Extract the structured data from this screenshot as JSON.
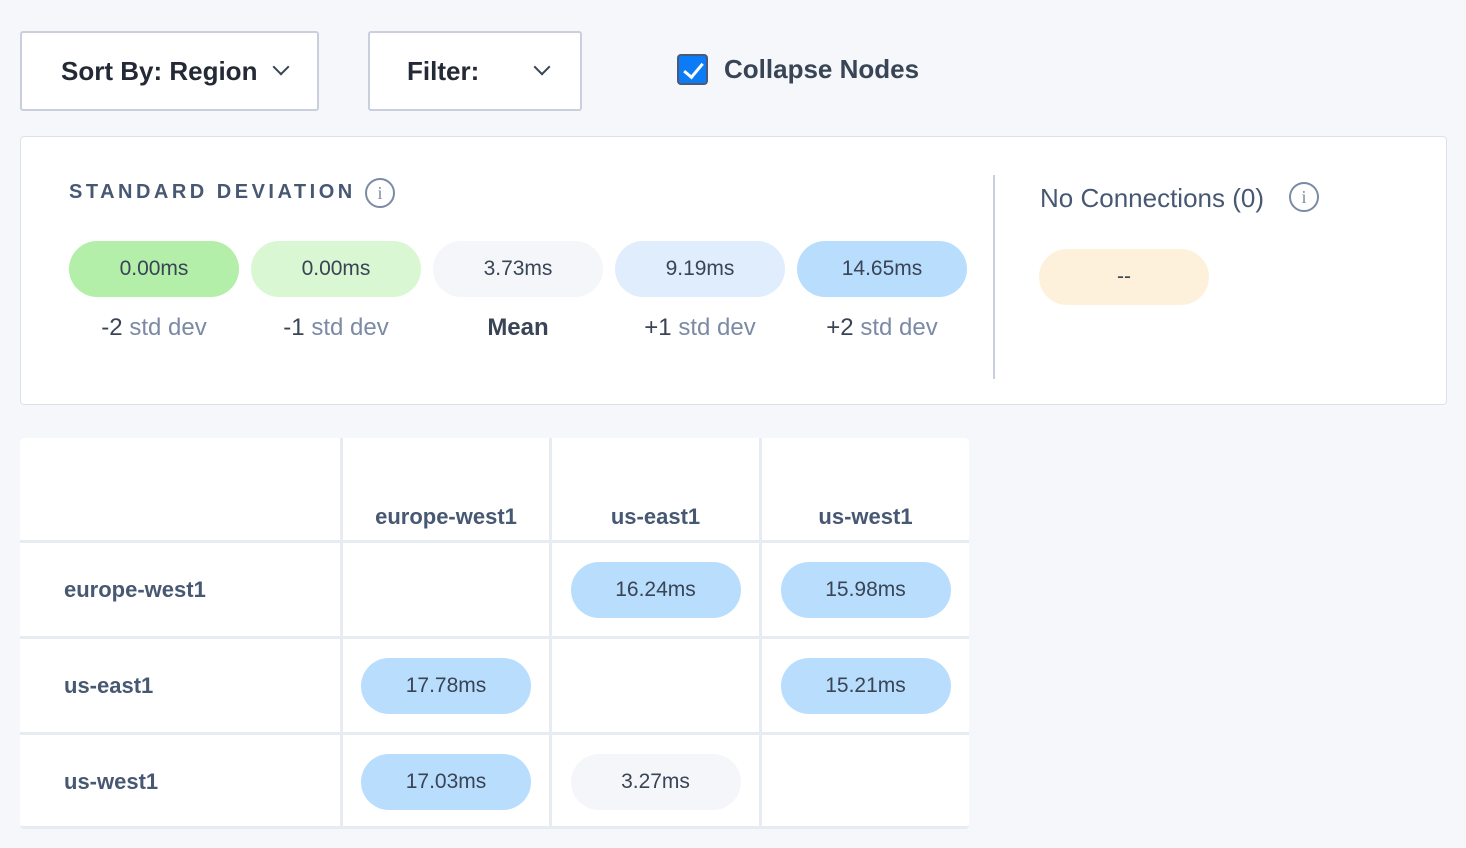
{
  "toolbar": {
    "sort_label": "Sort By: Region",
    "filter_label": "Filter:",
    "collapse_label": "Collapse Nodes",
    "collapse_checked": true
  },
  "std_panel": {
    "title": "STANDARD DEVIATION",
    "pills": [
      {
        "value": "0.00ms",
        "prefix": "-2",
        "suffix": "std dev",
        "color": "#b3efa9"
      },
      {
        "value": "0.00ms",
        "prefix": "-1",
        "suffix": "std dev",
        "color": "#d9f7d3"
      },
      {
        "value": "3.73ms",
        "prefix": "Mean",
        "suffix": "",
        "color": "#f4f6fa"
      },
      {
        "value": "9.19ms",
        "prefix": "+1",
        "suffix": "std dev",
        "color": "#dfedfc"
      },
      {
        "value": "14.65ms",
        "prefix": "+2",
        "suffix": "std dev",
        "color": "#b9ddfd"
      }
    ],
    "no_connections_label": "No Connections (0)",
    "no_connections_value": "--",
    "no_connections_color": "#fdf1dc"
  },
  "matrix": {
    "columns": [
      "europe-west1",
      "us-east1",
      "us-west1"
    ],
    "rows": [
      {
        "label": "europe-west1",
        "cells": [
          null,
          {
            "v": "16.24ms",
            "c": "#b9ddfd"
          },
          {
            "v": "15.98ms",
            "c": "#b9ddfd"
          }
        ]
      },
      {
        "label": "us-east1",
        "cells": [
          {
            "v": "17.78ms",
            "c": "#b9ddfd"
          },
          null,
          {
            "v": "15.21ms",
            "c": "#b9ddfd"
          }
        ]
      },
      {
        "label": "us-west1",
        "cells": [
          {
            "v": "17.03ms",
            "c": "#b9ddfd"
          },
          {
            "v": "3.27ms",
            "c": "#f4f6fa"
          },
          null
        ]
      }
    ]
  }
}
